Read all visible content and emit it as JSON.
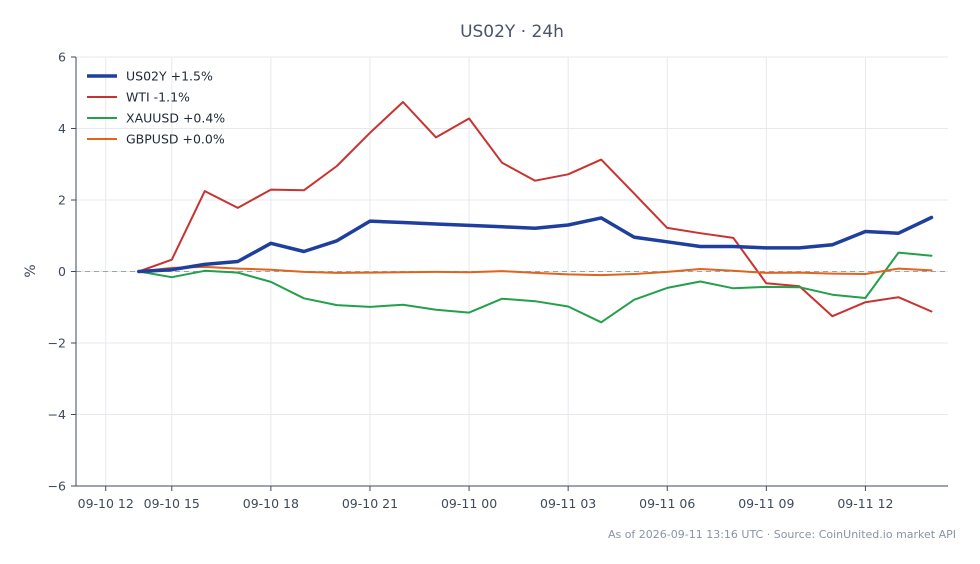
{
  "chart_data": {
    "type": "line",
    "title": "US02Y · 24h",
    "ylabel": "%",
    "xlabel": "",
    "ylim": [
      -6,
      6
    ],
    "yticks": [
      6,
      4,
      2,
      0,
      -2,
      -4,
      -6
    ],
    "ytick_labels": [
      "6",
      "4",
      "2",
      "0",
      "−2",
      "−4",
      "−6"
    ],
    "xticks": [
      0,
      2,
      5,
      8,
      11,
      14,
      17,
      20,
      23
    ],
    "xtick_labels": [
      "09-10 12",
      "09-10 15",
      "09-10 18",
      "09-10 21",
      "09-11 00",
      "09-11 03",
      "09-11 06",
      "09-11 09",
      "09-11 12"
    ],
    "xlim": [
      -0.9,
      25.5
    ],
    "grid": true,
    "zero_line": true,
    "legend_position": "top-left",
    "x": [
      1,
      2,
      3,
      4,
      5,
      6,
      7,
      8,
      9,
      10,
      11,
      12,
      13,
      14,
      15,
      16,
      17,
      18,
      19,
      20,
      21,
      22,
      23,
      24,
      25
    ],
    "series": [
      {
        "name": "US02Y +1.5%",
        "color": "#1f3f9e",
        "width": 3.5,
        "values": [
          0.0,
          0.05,
          0.2,
          0.28,
          0.79,
          0.56,
          0.86,
          1.41,
          1.37,
          1.33,
          1.29,
          1.25,
          1.21,
          1.3,
          1.5,
          0.96,
          0.83,
          0.7,
          0.7,
          0.66,
          0.66,
          0.75,
          1.12,
          1.07,
          1.51
        ]
      },
      {
        "name": "WTI -1.1%",
        "color": "#c8332f",
        "width": 2,
        "values": [
          0.0,
          0.33,
          2.25,
          1.78,
          2.29,
          2.27,
          2.95,
          3.88,
          4.74,
          3.75,
          4.28,
          3.04,
          2.54,
          2.72,
          3.13,
          2.18,
          1.22,
          1.07,
          0.94,
          -0.33,
          -0.41,
          -1.25,
          -0.86,
          -0.72,
          -1.12
        ]
      },
      {
        "name": "XAUUSD +0.4%",
        "color": "#22a04a",
        "width": 2,
        "values": [
          0.0,
          -0.16,
          0.02,
          -0.03,
          -0.29,
          -0.75,
          -0.94,
          -0.99,
          -0.93,
          -1.07,
          -1.15,
          -0.76,
          -0.83,
          -0.98,
          -1.42,
          -0.79,
          -0.46,
          -0.28,
          -0.47,
          -0.43,
          -0.44,
          -0.65,
          -0.74,
          0.53,
          0.44
        ]
      },
      {
        "name": "GBPUSD +0.0%",
        "color": "#e0641c",
        "width": 2,
        "values": [
          0.0,
          0.1,
          0.13,
          0.08,
          0.05,
          -0.01,
          -0.04,
          -0.03,
          -0.02,
          -0.01,
          -0.02,
          0.01,
          -0.04,
          -0.08,
          -0.1,
          -0.07,
          -0.01,
          0.07,
          0.02,
          -0.04,
          -0.03,
          -0.06,
          -0.07,
          0.08,
          0.03
        ]
      }
    ],
    "footer": "As of 2026-09-11 13:16 UTC · Source: CoinUnited.io market API"
  }
}
